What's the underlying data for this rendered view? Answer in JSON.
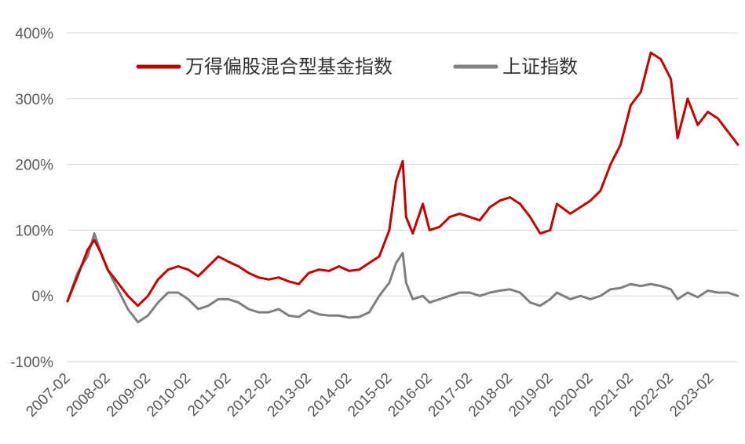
{
  "colors": {
    "fund_index": "#c00000",
    "shanghai_index": "#7f7f7f",
    "grid": "#d9d9d9",
    "axis_text": "#595959"
  },
  "chart_data": {
    "type": "line",
    "title": "",
    "xlabel": "",
    "ylabel": "",
    "y_unit": "%",
    "ylim": [
      -100,
      400
    ],
    "y_ticks": [
      -100,
      0,
      100,
      200,
      300,
      400
    ],
    "y_tick_labels": [
      "-100%",
      "0%",
      "100%",
      "200%",
      "300%",
      "400%"
    ],
    "x_range": [
      "2007-02",
      "2023-10"
    ],
    "x_tick_labels": [
      "2007-02",
      "2008-02",
      "2009-02",
      "2010-02",
      "2011-02",
      "2012-02",
      "2013-02",
      "2014-02",
      "2015-02",
      "2016-02",
      "2017-02",
      "2018-02",
      "2019-02",
      "2020-02",
      "2021-02",
      "2022-02",
      "2023-02"
    ],
    "grid": "horizontal",
    "legend": "top",
    "series": [
      {
        "name": "万得偏股混合型基金指数",
        "x": [
          "2007-02",
          "2007-05",
          "2007-08",
          "2007-10",
          "2007-12",
          "2008-02",
          "2008-05",
          "2008-08",
          "2008-11",
          "2009-02",
          "2009-05",
          "2009-08",
          "2009-11",
          "2010-02",
          "2010-05",
          "2010-08",
          "2010-11",
          "2011-02",
          "2011-05",
          "2011-08",
          "2011-11",
          "2012-02",
          "2012-05",
          "2012-08",
          "2012-11",
          "2013-02",
          "2013-05",
          "2013-08",
          "2013-11",
          "2014-02",
          "2014-05",
          "2014-08",
          "2014-11",
          "2015-02",
          "2015-04",
          "2015-06",
          "2015-07",
          "2015-09",
          "2015-12",
          "2016-02",
          "2016-05",
          "2016-08",
          "2016-11",
          "2017-02",
          "2017-05",
          "2017-08",
          "2017-11",
          "2018-02",
          "2018-05",
          "2018-08",
          "2018-11",
          "2019-02",
          "2019-04",
          "2019-08",
          "2019-11",
          "2020-02",
          "2020-05",
          "2020-08",
          "2020-11",
          "2021-02",
          "2021-05",
          "2021-08",
          "2021-11",
          "2022-02",
          "2022-04",
          "2022-07",
          "2022-10",
          "2023-01",
          "2023-04",
          "2023-07",
          "2023-10"
        ],
        "y": [
          -8,
          30,
          70,
          85,
          65,
          40,
          20,
          0,
          -15,
          0,
          25,
          40,
          45,
          40,
          30,
          45,
          60,
          52,
          45,
          35,
          28,
          25,
          28,
          22,
          18,
          35,
          40,
          38,
          45,
          38,
          40,
          50,
          60,
          100,
          175,
          205,
          120,
          95,
          140,
          100,
          105,
          120,
          125,
          120,
          115,
          135,
          145,
          150,
          140,
          120,
          95,
          100,
          140,
          125,
          135,
          145,
          160,
          200,
          230,
          290,
          310,
          370,
          360,
          330,
          240,
          300,
          260,
          280,
          270,
          250,
          230
        ]
      },
      {
        "name": "上证指数",
        "x": [
          "2007-02",
          "2007-05",
          "2007-08",
          "2007-10",
          "2007-12",
          "2008-02",
          "2008-05",
          "2008-08",
          "2008-11",
          "2009-02",
          "2009-05",
          "2009-08",
          "2009-11",
          "2010-02",
          "2010-05",
          "2010-08",
          "2010-11",
          "2011-02",
          "2011-05",
          "2011-08",
          "2011-11",
          "2012-02",
          "2012-05",
          "2012-08",
          "2012-11",
          "2013-02",
          "2013-05",
          "2013-08",
          "2013-11",
          "2014-02",
          "2014-05",
          "2014-08",
          "2014-11",
          "2015-02",
          "2015-04",
          "2015-06",
          "2015-07",
          "2015-09",
          "2015-12",
          "2016-02",
          "2016-05",
          "2016-08",
          "2016-11",
          "2017-02",
          "2017-05",
          "2017-08",
          "2017-11",
          "2018-02",
          "2018-05",
          "2018-08",
          "2018-11",
          "2019-02",
          "2019-04",
          "2019-08",
          "2019-11",
          "2020-02",
          "2020-05",
          "2020-08",
          "2020-11",
          "2021-02",
          "2021-05",
          "2021-08",
          "2021-11",
          "2022-02",
          "2022-04",
          "2022-07",
          "2022-10",
          "2023-01",
          "2023-04",
          "2023-07",
          "2023-10"
        ],
        "y": [
          -8,
          35,
          60,
          95,
          65,
          40,
          10,
          -20,
          -40,
          -30,
          -10,
          5,
          5,
          -5,
          -20,
          -15,
          -5,
          -5,
          -10,
          -20,
          -25,
          -25,
          -20,
          -30,
          -32,
          -22,
          -28,
          -30,
          -30,
          -33,
          -32,
          -25,
          0,
          20,
          50,
          65,
          20,
          -5,
          0,
          -10,
          -5,
          0,
          5,
          5,
          0,
          5,
          8,
          10,
          5,
          -10,
          -15,
          -5,
          5,
          -5,
          0,
          -5,
          0,
          10,
          12,
          18,
          15,
          18,
          15,
          10,
          -5,
          5,
          -2,
          8,
          5,
          5,
          0
        ]
      }
    ]
  }
}
